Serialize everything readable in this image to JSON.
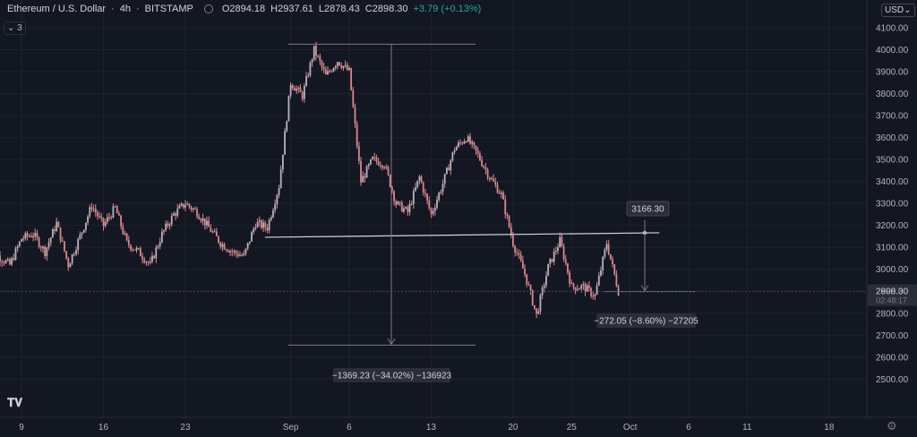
{
  "header": {
    "symbol": "Ethereum / U.S. Dollar",
    "interval": "4h",
    "exchange": "BITSTAMP",
    "open": "O2894.18",
    "high": "H2937.61",
    "low": "L2878.43",
    "close": "C2898.30",
    "change": "+3.79 (+0.13%)",
    "indicator_count": "3",
    "currency": "USD"
  },
  "colors": {
    "background": "#131722",
    "candle": "#d9888a",
    "axis_text": "#b2b5be",
    "line": "#b2b5be",
    "label_bg": "#2a2e39"
  },
  "icons": [
    "tradingview-logo-icon",
    "gear-icon",
    "chevron-down-icon"
  ],
  "chart_data": {
    "type": "line",
    "title": "",
    "xlabel": "",
    "ylabel": "",
    "ylim": [
      2410,
      4130
    ],
    "yticks": [
      2500,
      2600,
      2700,
      2800,
      2900,
      3000,
      3100,
      3200,
      3300,
      3400,
      3500,
      3600,
      3700,
      3800,
      3900,
      4000,
      4100
    ],
    "ytick_labels": [
      "2500.00",
      "2600.00",
      "2700.00",
      "2800.00",
      "2900.00",
      "3000.00",
      "3100.00",
      "3200.00",
      "3300.00",
      "3400.00",
      "3500.00",
      "3600.00",
      "3700.00",
      "3800.00",
      "3900.00",
      "4000.00",
      "4100.00"
    ],
    "xticks": [
      {
        "day": 9,
        "label": "9"
      },
      {
        "day": 16,
        "label": "16"
      },
      {
        "day": 23,
        "label": "23"
      },
      {
        "day": 32,
        "label": "Sep"
      },
      {
        "day": 37,
        "label": "6"
      },
      {
        "day": 44,
        "label": "13"
      },
      {
        "day": 51,
        "label": "20"
      },
      {
        "day": 56,
        "label": "25"
      },
      {
        "day": 61,
        "label": "Oct"
      },
      {
        "day": 66,
        "label": "6"
      },
      {
        "day": 71,
        "label": "11"
      },
      {
        "day": 78,
        "label": "18"
      }
    ],
    "series": [
      {
        "points": [
          [
            6,
            3100
          ],
          [
            7,
            3060
          ],
          [
            8,
            3020
          ],
          [
            9,
            3140
          ],
          [
            10,
            3160
          ],
          [
            11,
            3080
          ],
          [
            12,
            3210
          ],
          [
            13,
            3020
          ],
          [
            14,
            3150
          ],
          [
            15,
            3290
          ],
          [
            16,
            3200
          ],
          [
            17,
            3280
          ],
          [
            18,
            3120
          ],
          [
            19,
            3080
          ],
          [
            20,
            3020
          ],
          [
            21,
            3160
          ],
          [
            22,
            3250
          ],
          [
            23,
            3300
          ],
          [
            24,
            3260
          ],
          [
            25,
            3190
          ],
          [
            26,
            3120
          ],
          [
            27,
            3080
          ],
          [
            28,
            3060
          ],
          [
            29,
            3210
          ],
          [
            30,
            3190
          ],
          [
            31,
            3380
          ],
          [
            32,
            3850
          ],
          [
            33,
            3790
          ],
          [
            34,
            4000
          ],
          [
            35,
            3880
          ],
          [
            36,
            3950
          ],
          [
            37,
            3900
          ],
          [
            38,
            3400
          ],
          [
            39,
            3500
          ],
          [
            40,
            3480
          ],
          [
            41,
            3300
          ],
          [
            42,
            3260
          ],
          [
            43,
            3420
          ],
          [
            44,
            3250
          ],
          [
            45,
            3390
          ],
          [
            46,
            3550
          ],
          [
            47,
            3600
          ],
          [
            48,
            3520
          ],
          [
            49,
            3420
          ],
          [
            50,
            3340
          ],
          [
            51,
            3120
          ],
          [
            52,
            2980
          ],
          [
            53,
            2790
          ],
          [
            54,
            3010
          ],
          [
            55,
            3130
          ],
          [
            56,
            2920
          ],
          [
            57,
            2920
          ],
          [
            58,
            2880
          ],
          [
            59,
            3120
          ],
          [
            60,
            2900
          ]
        ]
      }
    ],
    "annotations": {
      "horizontal_line": {
        "from_day": 29.8,
        "to_day": 63.5,
        "y": 3166.3
      },
      "price_label": "3166.30",
      "range_top": {
        "from_day": 32,
        "to_day": 47.8,
        "y": 4025
      },
      "range_bottom": {
        "from_day": 32,
        "to_day": 47.8,
        "y": 2655
      },
      "range_label": "−1369.23 (−34.02%) −136923",
      "measure_label": "−272.05 (−8.60%) −27205",
      "measure_end": {
        "from_day": 58.8,
        "to_day": 63.5,
        "y": 2898.3
      },
      "current_price": "2898.30",
      "current_price_sub": "02:48:17"
    }
  }
}
